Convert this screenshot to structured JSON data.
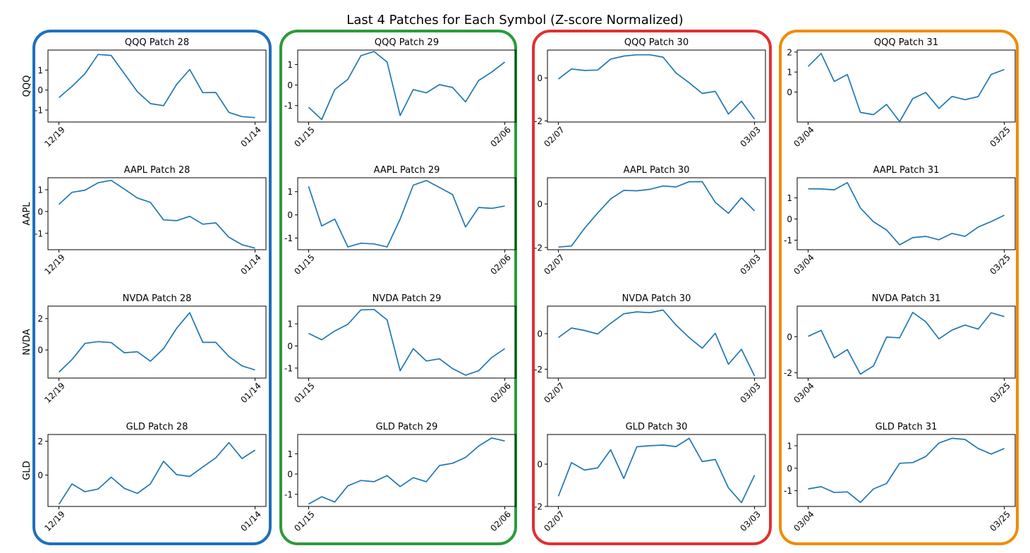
{
  "title": "Last 4 Patches for Each Symbol (Z-score Normalized)",
  "series_color": "#1f77b4",
  "group_colors": [
    "#1f6fbd",
    "#2e9a3b",
    "#e03131",
    "#f08c00"
  ],
  "row_labels": [
    "QQQ",
    "AAPL",
    "NVDA",
    "GLD"
  ],
  "chart_data": [
    {
      "type": "line",
      "title": "QQQ Patch 28",
      "symbol": "QQQ",
      "patch": 28,
      "x_start": "12/19",
      "x_end": "01/14",
      "ylim": [
        -1.6,
        2.0
      ],
      "yticks": [
        -1,
        0,
        1
      ],
      "values": [
        -0.38,
        0.18,
        0.82,
        1.78,
        1.73,
        0.82,
        -0.08,
        -0.68,
        -0.78,
        0.28,
        1.03,
        -0.13,
        -0.12,
        -1.12,
        -1.33,
        -1.38
      ]
    },
    {
      "type": "line",
      "title": "QQQ Patch 29",
      "symbol": "QQQ",
      "patch": 29,
      "x_start": "01/15",
      "x_end": "02/06",
      "ylim": [
        -1.8,
        1.7
      ],
      "yticks": [
        -1,
        0,
        1
      ],
      "values": [
        -1.08,
        -1.68,
        -0.22,
        0.28,
        1.43,
        1.63,
        1.12,
        -1.48,
        -0.22,
        -0.38,
        0.02,
        -0.12,
        -0.82,
        0.22,
        0.63,
        1.12
      ]
    },
    {
      "type": "line",
      "title": "QQQ Patch 30",
      "symbol": "QQQ",
      "patch": 30,
      "x_start": "02/07",
      "x_end": "03/03",
      "ylim": [
        -2.05,
        1.3
      ],
      "yticks": [
        -2,
        0
      ],
      "values": [
        -0.05,
        0.42,
        0.35,
        0.37,
        0.88,
        1.02,
        1.08,
        1.08,
        0.97,
        0.23,
        -0.22,
        -0.72,
        -0.62,
        -1.68,
        -1.08,
        -1.92
      ]
    },
    {
      "type": "line",
      "title": "QQQ Patch 31",
      "symbol": "QQQ",
      "patch": 31,
      "x_start": "03/04",
      "x_end": "03/25",
      "ylim": [
        -1.5,
        2.1
      ],
      "yticks": [
        0,
        1,
        2
      ],
      "values": [
        1.28,
        1.93,
        0.53,
        0.88,
        -1.02,
        -1.13,
        -0.62,
        -1.48,
        -0.33,
        -0.02,
        -0.82,
        -0.22,
        -0.38,
        -0.23,
        0.88,
        1.13
      ]
    },
    {
      "type": "line",
      "title": "AAPL Patch 28",
      "symbol": "AAPL",
      "patch": 28,
      "x_start": "12/19",
      "x_end": "01/14",
      "ylim": [
        -1.75,
        1.55
      ],
      "yticks": [
        -1,
        0,
        1
      ],
      "values": [
        0.33,
        0.88,
        0.98,
        1.32,
        1.43,
        1.03,
        0.62,
        0.42,
        -0.38,
        -0.42,
        -0.22,
        -0.58,
        -0.52,
        -1.18,
        -1.52,
        -1.68
      ]
    },
    {
      "type": "line",
      "title": "AAPL Patch 29",
      "symbol": "AAPL",
      "patch": 29,
      "x_start": "01/15",
      "x_end": "02/06",
      "ylim": [
        -1.5,
        1.6
      ],
      "yticks": [
        -1,
        0,
        1
      ],
      "values": [
        1.23,
        -0.48,
        -0.18,
        -1.38,
        -1.22,
        -1.25,
        -1.38,
        -0.18,
        1.28,
        1.48,
        1.18,
        0.88,
        -0.52,
        0.32,
        0.28,
        0.38
      ]
    },
    {
      "type": "line",
      "title": "AAPL Patch 30",
      "symbol": "AAPL",
      "patch": 30,
      "x_start": "02/07",
      "x_end": "03/03",
      "ylim": [
        -2.1,
        1.2
      ],
      "yticks": [
        -2,
        0
      ],
      "values": [
        -1.98,
        -1.93,
        -1.12,
        -0.42,
        0.23,
        0.62,
        0.6,
        0.67,
        0.82,
        0.78,
        1.02,
        1.02,
        0.07,
        -0.43,
        0.28,
        -0.32
      ]
    },
    {
      "type": "line",
      "title": "AAPL Patch 31",
      "symbol": "AAPL",
      "patch": 31,
      "x_start": "03/04",
      "x_end": "03/25",
      "ylim": [
        -1.45,
        1.95
      ],
      "yticks": [
        -1,
        0,
        1
      ],
      "values": [
        1.43,
        1.42,
        1.38,
        1.72,
        0.52,
        -0.13,
        -0.52,
        -1.22,
        -0.88,
        -0.82,
        -0.98,
        -0.68,
        -0.82,
        -0.38,
        -0.12,
        0.18
      ]
    },
    {
      "type": "line",
      "title": "NVDA Patch 28",
      "symbol": "NVDA",
      "patch": 28,
      "x_start": "12/19",
      "x_end": "01/14",
      "ylim": [
        -1.8,
        2.8
      ],
      "yticks": [
        0,
        2
      ],
      "values": [
        -1.42,
        -0.62,
        0.42,
        0.53,
        0.47,
        -0.18,
        -0.12,
        -0.72,
        0.08,
        1.38,
        2.38,
        0.48,
        0.48,
        -0.42,
        -1.02,
        -1.28
      ]
    },
    {
      "type": "line",
      "title": "NVDA Patch 29",
      "symbol": "NVDA",
      "patch": 29,
      "x_start": "01/15",
      "x_end": "02/06",
      "ylim": [
        -1.45,
        1.8
      ],
      "yticks": [
        -1,
        0,
        1
      ],
      "values": [
        0.57,
        0.28,
        0.68,
        0.98,
        1.63,
        1.65,
        1.18,
        -1.12,
        -0.12,
        -0.68,
        -0.58,
        -1.02,
        -1.32,
        -1.12,
        -0.52,
        -0.12
      ]
    },
    {
      "type": "line",
      "title": "NVDA Patch 30",
      "symbol": "NVDA",
      "patch": 30,
      "x_start": "02/07",
      "x_end": "03/03",
      "ylim": [
        -2.5,
        1.55
      ],
      "yticks": [
        -2,
        0
      ],
      "values": [
        -0.22,
        0.32,
        0.18,
        -0.02,
        0.58,
        1.12,
        1.23,
        1.18,
        1.33,
        0.48,
        -0.22,
        -0.82,
        0.02,
        -1.72,
        -0.88,
        -2.38
      ]
    },
    {
      "type": "line",
      "title": "NVDA Patch 31",
      "symbol": "NVDA",
      "patch": 31,
      "x_start": "03/04",
      "x_end": "03/25",
      "ylim": [
        -2.3,
        1.7
      ],
      "yticks": [
        -2,
        0
      ],
      "values": [
        0.02,
        0.35,
        -1.18,
        -0.72,
        -2.08,
        -1.62,
        -0.02,
        -0.06,
        1.35,
        0.83,
        -0.12,
        0.37,
        0.65,
        0.42,
        1.33,
        1.12
      ]
    },
    {
      "type": "line",
      "title": "GLD Patch 28",
      "symbol": "GLD",
      "patch": 28,
      "x_start": "12/19",
      "x_end": "01/14",
      "ylim": [
        -1.85,
        2.4
      ],
      "yticks": [
        0,
        2
      ],
      "values": [
        -1.72,
        -0.52,
        -0.98,
        -0.82,
        -0.12,
        -0.78,
        -1.08,
        -0.52,
        0.82,
        0.03,
        -0.08,
        0.48,
        1.02,
        1.92,
        0.98,
        1.48
      ]
    },
    {
      "type": "line",
      "title": "GLD Patch 29",
      "symbol": "GLD",
      "patch": 29,
      "x_start": "01/15",
      "x_end": "02/06",
      "ylim": [
        -1.6,
        1.95
      ],
      "yticks": [
        -1,
        0,
        1
      ],
      "values": [
        -1.48,
        -1.12,
        -1.38,
        -0.58,
        -0.32,
        -0.38,
        -0.08,
        -0.62,
        -0.18,
        -0.38,
        0.42,
        0.53,
        0.82,
        1.38,
        1.78,
        1.63
      ]
    },
    {
      "type": "line",
      "title": "GLD Patch 30",
      "symbol": "GLD",
      "patch": 30,
      "x_start": "02/07",
      "x_end": "03/03",
      "ylim": [
        -2.0,
        1.4
      ],
      "yticks": [
        -2,
        0
      ],
      "values": [
        -1.52,
        0.07,
        -0.28,
        -0.18,
        0.68,
        -0.68,
        0.82,
        0.87,
        0.9,
        0.83,
        1.22,
        0.12,
        0.22,
        -1.12,
        -1.82,
        -0.52
      ]
    },
    {
      "type": "line",
      "title": "GLD Patch 31",
      "symbol": "GLD",
      "patch": 31,
      "x_start": "03/04",
      "x_end": "03/25",
      "ylim": [
        -1.7,
        1.5
      ],
      "yticks": [
        -1,
        0,
        1
      ],
      "values": [
        -0.92,
        -0.82,
        -1.08,
        -1.05,
        -1.52,
        -0.92,
        -0.68,
        0.22,
        0.25,
        0.52,
        1.12,
        1.33,
        1.28,
        0.88,
        0.63,
        0.88
      ]
    }
  ]
}
